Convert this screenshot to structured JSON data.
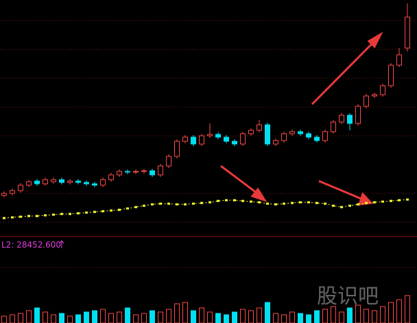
{
  "chart_data": {
    "type": "candlestick",
    "open": [
      55,
      58,
      62,
      70,
      76,
      72,
      75,
      78,
      74,
      76,
      74,
      72,
      70,
      78,
      85,
      90,
      89,
      90,
      91,
      85,
      98,
      112,
      134,
      140,
      130,
      142,
      144,
      140,
      134,
      130,
      145,
      150,
      158,
      130,
      135,
      145,
      148,
      145,
      140,
      135,
      148,
      162,
      172,
      160,
      185,
      200,
      202,
      215,
      245,
      270
    ],
    "high": [
      61,
      65,
      73,
      78,
      79,
      81,
      81,
      81,
      79,
      79,
      77,
      75,
      81,
      88,
      93,
      93,
      93,
      94,
      94,
      101,
      115,
      137,
      143,
      143,
      145,
      160,
      147,
      143,
      137,
      148,
      153,
      165,
      161,
      138,
      148,
      151,
      151,
      148,
      143,
      151,
      165,
      175,
      175,
      188,
      203,
      205,
      218,
      248,
      270,
      335
    ],
    "low": [
      52,
      55,
      59,
      67,
      69,
      69,
      72,
      71,
      71,
      71,
      69,
      67,
      67,
      75,
      82,
      86,
      86,
      87,
      82,
      82,
      95,
      109,
      131,
      127,
      127,
      139,
      137,
      131,
      127,
      127,
      142,
      147,
      127,
      127,
      132,
      142,
      142,
      137,
      132,
      132,
      145,
      159,
      150,
      157,
      182,
      197,
      199,
      212,
      242,
      265
    ],
    "close": [
      58,
      62,
      70,
      75,
      72,
      78,
      78,
      74,
      76,
      74,
      72,
      70,
      78,
      85,
      90,
      89,
      90,
      91,
      85,
      98,
      112,
      134,
      140,
      130,
      142,
      144,
      140,
      134,
      130,
      145,
      150,
      158,
      130,
      135,
      145,
      148,
      145,
      140,
      135,
      148,
      162,
      172,
      160,
      185,
      200,
      202,
      215,
      245,
      260,
      315
    ],
    "up_color": "#ff4a4a",
    "down_color": "#00e0f0",
    "ylim": [
      0,
      340
    ],
    "line": {
      "color": "#ffff33",
      "values": [
        22,
        23,
        24,
        25,
        25,
        26,
        27,
        28,
        28,
        29,
        30,
        31,
        32,
        33,
        34,
        36,
        38,
        40,
        42,
        43,
        43,
        42,
        42,
        43,
        44,
        45,
        47,
        48,
        48,
        47,
        46,
        45,
        43,
        42,
        43,
        44,
        45,
        45,
        44,
        43,
        40,
        38,
        40,
        42,
        44,
        45,
        46,
        47,
        48,
        49
      ]
    },
    "volume": {
      "values": [
        10,
        12,
        14,
        18,
        22,
        16,
        12,
        14,
        10,
        12,
        16,
        18,
        20,
        14,
        16,
        22,
        12,
        14,
        18,
        16,
        20,
        28,
        30,
        18,
        22,
        16,
        14,
        12,
        16,
        20,
        18,
        22,
        30,
        14,
        12,
        16,
        14,
        12,
        18,
        20,
        24,
        16,
        22,
        26,
        20,
        18,
        24,
        30,
        34,
        40
      ],
      "ylim": [
        0,
        40
      ]
    },
    "indicator_label": "L2: 28452.600",
    "watermark": "股识吧"
  }
}
